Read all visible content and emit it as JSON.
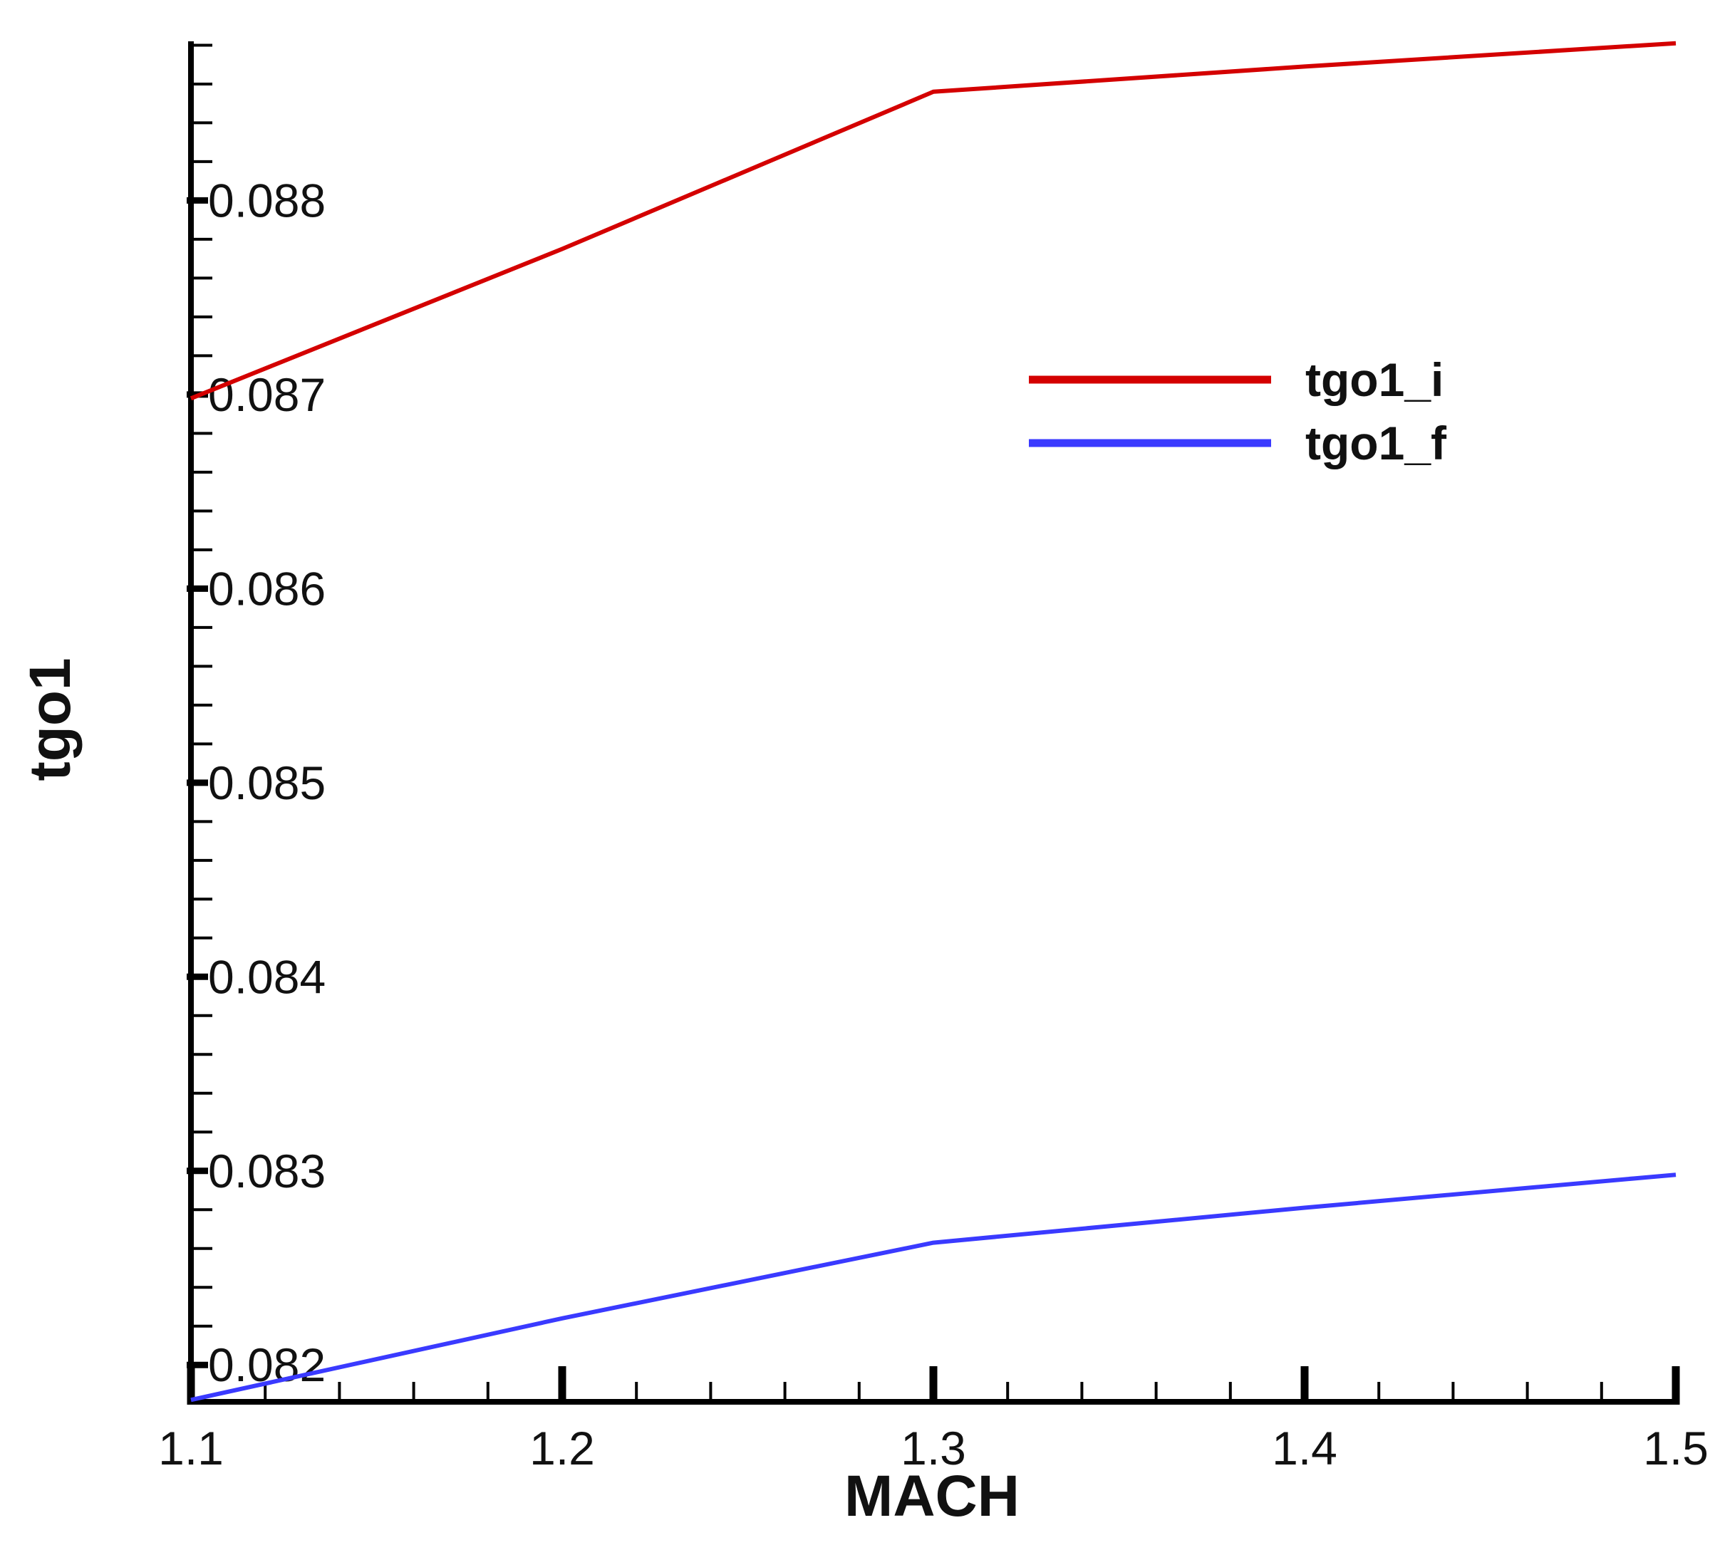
{
  "chart_data": {
    "type": "line",
    "title": "",
    "xlabel": "MACH",
    "ylabel": "tgo1",
    "xlim": [
      1.1,
      1.5
    ],
    "ylim": [
      0.08181,
      0.08882
    ],
    "x_ticks": [
      1.1,
      1.2,
      1.3,
      1.4,
      1.5
    ],
    "x_tick_labels": [
      "1.1",
      "1.2",
      "1.3",
      "1.4",
      "1.5"
    ],
    "y_ticks": [
      0.082,
      0.083,
      0.084,
      0.085,
      0.086,
      0.087,
      0.088
    ],
    "y_tick_labels": [
      "0.082",
      "0.083",
      "0.084",
      "0.085",
      "0.086",
      "0.087",
      "0.088"
    ],
    "grid": false,
    "legend_position": "upper-right",
    "x": [
      1.1,
      1.2,
      1.3,
      1.4,
      1.5
    ],
    "series": [
      {
        "name": "tgo1_i",
        "color": "#d40000",
        "values": [
          0.08698,
          0.08775,
          0.08856,
          0.08869,
          0.08881
        ]
      },
      {
        "name": "tgo1_f",
        "color": "#3a3aff",
        "values": [
          0.08182,
          0.08224,
          0.08263,
          0.08281,
          0.08298
        ]
      }
    ]
  }
}
